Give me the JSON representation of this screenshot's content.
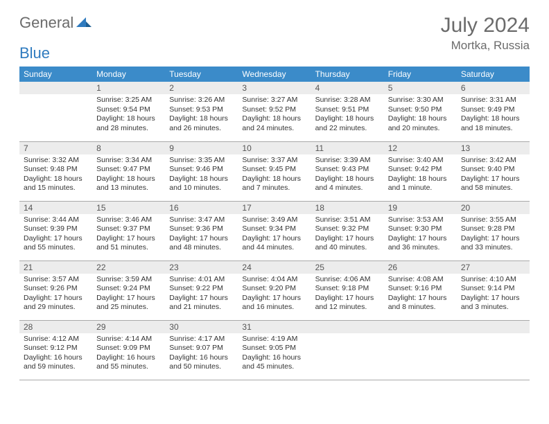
{
  "logo": {
    "part1": "General",
    "part2": "Blue"
  },
  "title": "July 2024",
  "location": "Mortka, Russia",
  "colors": {
    "header_bg": "#3b8bc9",
    "header_fg": "#ffffff",
    "daynum_bg": "#ececec",
    "text": "#333333",
    "logo_gray": "#6b6b6b",
    "logo_blue": "#2f7bbf",
    "border": "#a9a9a9"
  },
  "weekdays": [
    "Sunday",
    "Monday",
    "Tuesday",
    "Wednesday",
    "Thursday",
    "Friday",
    "Saturday"
  ],
  "weeks": [
    [
      null,
      {
        "n": "1",
        "sr": "Sunrise: 3:25 AM",
        "ss": "Sunset: 9:54 PM",
        "dl": "Daylight: 18 hours and 28 minutes."
      },
      {
        "n": "2",
        "sr": "Sunrise: 3:26 AM",
        "ss": "Sunset: 9:53 PM",
        "dl": "Daylight: 18 hours and 26 minutes."
      },
      {
        "n": "3",
        "sr": "Sunrise: 3:27 AM",
        "ss": "Sunset: 9:52 PM",
        "dl": "Daylight: 18 hours and 24 minutes."
      },
      {
        "n": "4",
        "sr": "Sunrise: 3:28 AM",
        "ss": "Sunset: 9:51 PM",
        "dl": "Daylight: 18 hours and 22 minutes."
      },
      {
        "n": "5",
        "sr": "Sunrise: 3:30 AM",
        "ss": "Sunset: 9:50 PM",
        "dl": "Daylight: 18 hours and 20 minutes."
      },
      {
        "n": "6",
        "sr": "Sunrise: 3:31 AM",
        "ss": "Sunset: 9:49 PM",
        "dl": "Daylight: 18 hours and 18 minutes."
      }
    ],
    [
      {
        "n": "7",
        "sr": "Sunrise: 3:32 AM",
        "ss": "Sunset: 9:48 PM",
        "dl": "Daylight: 18 hours and 15 minutes."
      },
      {
        "n": "8",
        "sr": "Sunrise: 3:34 AM",
        "ss": "Sunset: 9:47 PM",
        "dl": "Daylight: 18 hours and 13 minutes."
      },
      {
        "n": "9",
        "sr": "Sunrise: 3:35 AM",
        "ss": "Sunset: 9:46 PM",
        "dl": "Daylight: 18 hours and 10 minutes."
      },
      {
        "n": "10",
        "sr": "Sunrise: 3:37 AM",
        "ss": "Sunset: 9:45 PM",
        "dl": "Daylight: 18 hours and 7 minutes."
      },
      {
        "n": "11",
        "sr": "Sunrise: 3:39 AM",
        "ss": "Sunset: 9:43 PM",
        "dl": "Daylight: 18 hours and 4 minutes."
      },
      {
        "n": "12",
        "sr": "Sunrise: 3:40 AM",
        "ss": "Sunset: 9:42 PM",
        "dl": "Daylight: 18 hours and 1 minute."
      },
      {
        "n": "13",
        "sr": "Sunrise: 3:42 AM",
        "ss": "Sunset: 9:40 PM",
        "dl": "Daylight: 17 hours and 58 minutes."
      }
    ],
    [
      {
        "n": "14",
        "sr": "Sunrise: 3:44 AM",
        "ss": "Sunset: 9:39 PM",
        "dl": "Daylight: 17 hours and 55 minutes."
      },
      {
        "n": "15",
        "sr": "Sunrise: 3:46 AM",
        "ss": "Sunset: 9:37 PM",
        "dl": "Daylight: 17 hours and 51 minutes."
      },
      {
        "n": "16",
        "sr": "Sunrise: 3:47 AM",
        "ss": "Sunset: 9:36 PM",
        "dl": "Daylight: 17 hours and 48 minutes."
      },
      {
        "n": "17",
        "sr": "Sunrise: 3:49 AM",
        "ss": "Sunset: 9:34 PM",
        "dl": "Daylight: 17 hours and 44 minutes."
      },
      {
        "n": "18",
        "sr": "Sunrise: 3:51 AM",
        "ss": "Sunset: 9:32 PM",
        "dl": "Daylight: 17 hours and 40 minutes."
      },
      {
        "n": "19",
        "sr": "Sunrise: 3:53 AM",
        "ss": "Sunset: 9:30 PM",
        "dl": "Daylight: 17 hours and 36 minutes."
      },
      {
        "n": "20",
        "sr": "Sunrise: 3:55 AM",
        "ss": "Sunset: 9:28 PM",
        "dl": "Daylight: 17 hours and 33 minutes."
      }
    ],
    [
      {
        "n": "21",
        "sr": "Sunrise: 3:57 AM",
        "ss": "Sunset: 9:26 PM",
        "dl": "Daylight: 17 hours and 29 minutes."
      },
      {
        "n": "22",
        "sr": "Sunrise: 3:59 AM",
        "ss": "Sunset: 9:24 PM",
        "dl": "Daylight: 17 hours and 25 minutes."
      },
      {
        "n": "23",
        "sr": "Sunrise: 4:01 AM",
        "ss": "Sunset: 9:22 PM",
        "dl": "Daylight: 17 hours and 21 minutes."
      },
      {
        "n": "24",
        "sr": "Sunrise: 4:04 AM",
        "ss": "Sunset: 9:20 PM",
        "dl": "Daylight: 17 hours and 16 minutes."
      },
      {
        "n": "25",
        "sr": "Sunrise: 4:06 AM",
        "ss": "Sunset: 9:18 PM",
        "dl": "Daylight: 17 hours and 12 minutes."
      },
      {
        "n": "26",
        "sr": "Sunrise: 4:08 AM",
        "ss": "Sunset: 9:16 PM",
        "dl": "Daylight: 17 hours and 8 minutes."
      },
      {
        "n": "27",
        "sr": "Sunrise: 4:10 AM",
        "ss": "Sunset: 9:14 PM",
        "dl": "Daylight: 17 hours and 3 minutes."
      }
    ],
    [
      {
        "n": "28",
        "sr": "Sunrise: 4:12 AM",
        "ss": "Sunset: 9:12 PM",
        "dl": "Daylight: 16 hours and 59 minutes."
      },
      {
        "n": "29",
        "sr": "Sunrise: 4:14 AM",
        "ss": "Sunset: 9:09 PM",
        "dl": "Daylight: 16 hours and 55 minutes."
      },
      {
        "n": "30",
        "sr": "Sunrise: 4:17 AM",
        "ss": "Sunset: 9:07 PM",
        "dl": "Daylight: 16 hours and 50 minutes."
      },
      {
        "n": "31",
        "sr": "Sunrise: 4:19 AM",
        "ss": "Sunset: 9:05 PM",
        "dl": "Daylight: 16 hours and 45 minutes."
      },
      null,
      null,
      null
    ]
  ]
}
